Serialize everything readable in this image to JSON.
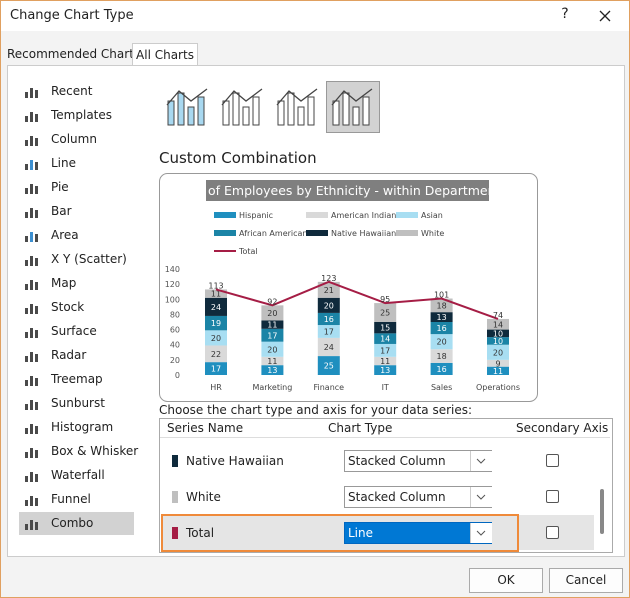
{
  "dialog": {
    "title": "Change Chart Type",
    "help": "?"
  },
  "tabs": [
    "Recommended Charts",
    "All Charts"
  ],
  "chart_types": [
    "Recent",
    "Templates",
    "Column",
    "Line",
    "Pie",
    "Bar",
    "Area",
    "X Y (Scatter)",
    "Map",
    "Stock",
    "Surface",
    "Radar",
    "Treemap",
    "Sunburst",
    "Histogram",
    "Box & Whisker",
    "Waterfall",
    "Funnel",
    "Combo"
  ],
  "section_title": "Custom Combination",
  "chart_data": {
    "type": "bar",
    "stacked": true,
    "title": "# of Employees by Ethnicity - within Department",
    "categories": [
      "HR",
      "Marketing",
      "Finance",
      "IT",
      "Sales",
      "Operations"
    ],
    "series": [
      {
        "name": "Hispanic",
        "type": "bar",
        "color": "#1f8fbf",
        "values": [
          17,
          13,
          25,
          13,
          16,
          11
        ]
      },
      {
        "name": "American Indian",
        "type": "bar",
        "color": "#d9d9d9",
        "values": [
          22,
          11,
          24,
          11,
          18,
          9
        ]
      },
      {
        "name": "Asian",
        "type": "bar",
        "color": "#a8def2",
        "values": [
          20,
          20,
          17,
          17,
          20,
          20
        ]
      },
      {
        "name": "African American",
        "type": "bar",
        "color": "#1b84a6",
        "values": [
          19,
          17,
          16,
          14,
          16,
          10
        ]
      },
      {
        "name": "Native Hawaiian",
        "type": "bar",
        "color": "#0f2a3c",
        "values": [
          24,
          11,
          20,
          15,
          13,
          10
        ]
      },
      {
        "name": "White",
        "type": "bar",
        "color": "#bfbfbf",
        "values": [
          11,
          20,
          21,
          25,
          18,
          14
        ]
      },
      {
        "name": "Total",
        "type": "line",
        "color": "#a51d45",
        "values": [
          113,
          92,
          123,
          95,
          101,
          74
        ]
      }
    ],
    "ylim": [
      0,
      140
    ],
    "yticks": [
      0,
      20,
      40,
      60,
      80,
      100,
      120,
      140
    ]
  },
  "series_prompt": "Choose the chart type and axis for your data series:",
  "series_table": {
    "columns": [
      "Series Name",
      "Chart Type",
      "Secondary Axis"
    ],
    "rows": [
      {
        "name": "Native Hawaiian",
        "color": "#0f2a3c",
        "chart_type": "Stacked Column",
        "secondary_axis": false
      },
      {
        "name": "White",
        "color": "#bfbfbf",
        "chart_type": "Stacked Column",
        "secondary_axis": false
      },
      {
        "name": "Total",
        "color": "#a51d45",
        "chart_type": "Line",
        "secondary_axis": false
      }
    ]
  },
  "buttons": [
    "OK",
    "Cancel"
  ]
}
